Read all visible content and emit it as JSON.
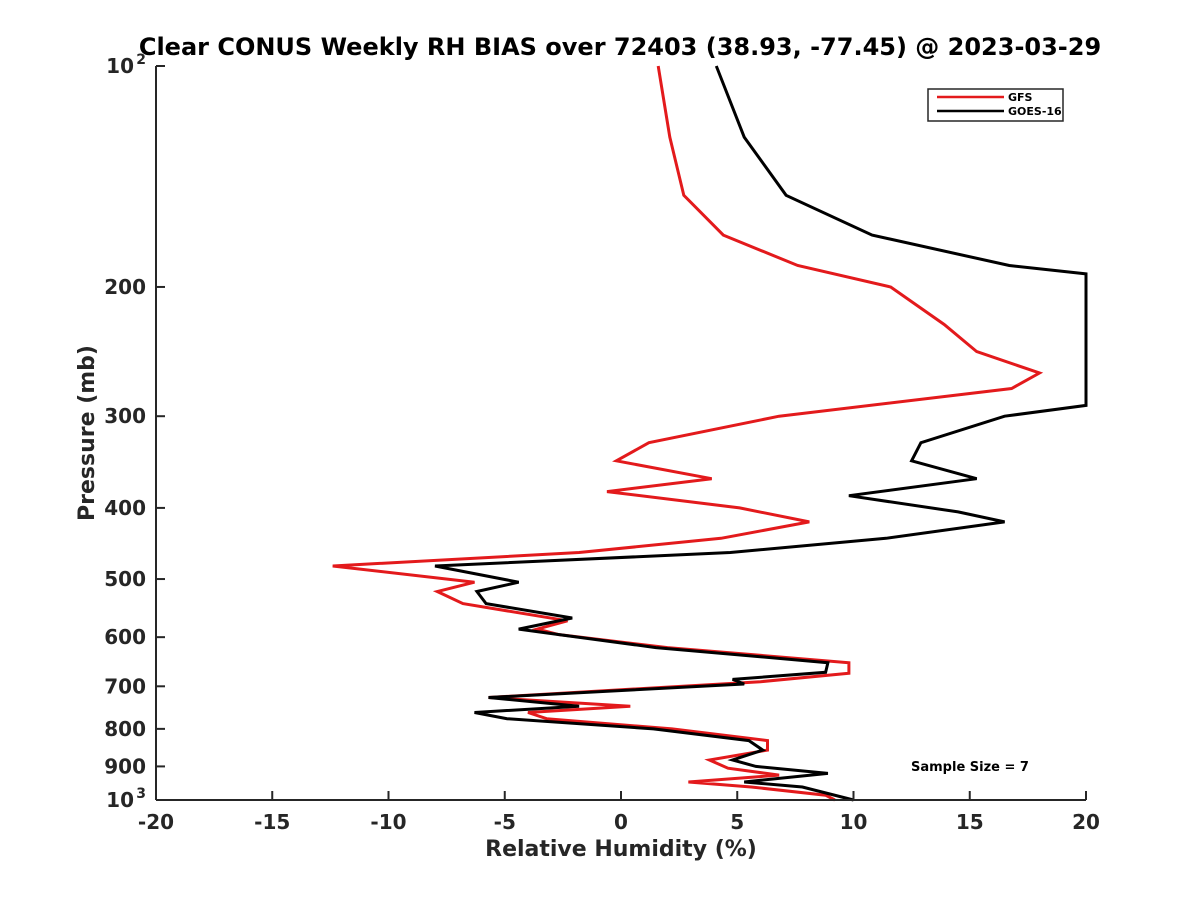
{
  "chart_data": {
    "type": "line",
    "title": "Clear CONUS Weekly RH BIAS over 72403 (38.93, -77.45) @ 2023-03-29",
    "xlabel": "Relative Humidity (%)",
    "ylabel": "Pressure (mb)",
    "xlim": [
      -20,
      20
    ],
    "ylim": [
      100,
      1000
    ],
    "y_scale": "log",
    "y_reversed": true,
    "grid": false,
    "legend_position": "top-right",
    "x_ticks": [
      -20,
      -15,
      -10,
      -5,
      0,
      5,
      10,
      15,
      20
    ],
    "y_ticks": [
      {
        "value": 100,
        "label": "10",
        "sup": "2"
      },
      {
        "value": 200,
        "label": "200",
        "sup": ""
      },
      {
        "value": 300,
        "label": "300",
        "sup": ""
      },
      {
        "value": 400,
        "label": "400",
        "sup": ""
      },
      {
        "value": 500,
        "label": "500",
        "sup": ""
      },
      {
        "value": 600,
        "label": "600",
        "sup": ""
      },
      {
        "value": 700,
        "label": "700",
        "sup": ""
      },
      {
        "value": 800,
        "label": "800",
        "sup": ""
      },
      {
        "value": 900,
        "label": "900",
        "sup": ""
      },
      {
        "value": 1000,
        "label": "10",
        "sup": "3"
      }
    ],
    "series": [
      {
        "name": "GFS",
        "color": "#e31a1c",
        "points": [
          [
            1.6,
            100
          ],
          [
            2.1,
            125
          ],
          [
            2.7,
            150
          ],
          [
            4.4,
            170
          ],
          [
            7.6,
            187
          ],
          [
            11.6,
            200
          ],
          [
            13.9,
            225
          ],
          [
            15.3,
            245
          ],
          [
            18.0,
            262
          ],
          [
            16.8,
            275
          ],
          [
            6.8,
            300
          ],
          [
            1.2,
            326
          ],
          [
            -0.2,
            345
          ],
          [
            3.9,
            365
          ],
          [
            -0.6,
            380
          ],
          [
            5.1,
            400
          ],
          [
            8.1,
            418
          ],
          [
            4.3,
            440
          ],
          [
            -1.8,
            460
          ],
          [
            -12.4,
            480
          ],
          [
            -6.3,
            505
          ],
          [
            -7.9,
            520
          ],
          [
            -6.8,
            540
          ],
          [
            -2.3,
            570
          ],
          [
            -3.6,
            585
          ],
          [
            -2.7,
            595
          ],
          [
            2.0,
            620
          ],
          [
            9.8,
            650
          ],
          [
            9.8,
            672
          ],
          [
            6.0,
            690
          ],
          [
            -5.7,
            725
          ],
          [
            0.4,
            745
          ],
          [
            -4.0,
            760
          ],
          [
            -3.2,
            775
          ],
          [
            2.2,
            800
          ],
          [
            6.3,
            830
          ],
          [
            6.3,
            855
          ],
          [
            3.8,
            882
          ],
          [
            4.6,
            905
          ],
          [
            6.8,
            925
          ],
          [
            2.9,
            945
          ],
          [
            5.6,
            960
          ],
          [
            8.8,
            985
          ],
          [
            9.2,
            1000
          ]
        ]
      },
      {
        "name": "GOES-16",
        "color": "#000000",
        "points": [
          [
            4.1,
            100
          ],
          [
            5.3,
            125
          ],
          [
            7.1,
            150
          ],
          [
            10.8,
            170
          ],
          [
            16.7,
            187
          ],
          [
            20.0,
            192
          ],
          [
            20.0,
            290
          ],
          [
            16.5,
            300
          ],
          [
            12.9,
            326
          ],
          [
            12.5,
            345
          ],
          [
            15.3,
            365
          ],
          [
            9.8,
            385
          ],
          [
            14.5,
            405
          ],
          [
            16.5,
            418
          ],
          [
            11.4,
            440
          ],
          [
            4.7,
            460
          ],
          [
            -8.0,
            480
          ],
          [
            -4.4,
            505
          ],
          [
            -6.2,
            520
          ],
          [
            -5.8,
            540
          ],
          [
            -2.1,
            565
          ],
          [
            -4.4,
            585
          ],
          [
            -2.7,
            595
          ],
          [
            1.5,
            620
          ],
          [
            8.9,
            650
          ],
          [
            8.8,
            670
          ],
          [
            4.8,
            685
          ],
          [
            5.3,
            695
          ],
          [
            -5.7,
            725
          ],
          [
            -1.8,
            745
          ],
          [
            -6.3,
            760
          ],
          [
            -4.9,
            775
          ],
          [
            1.4,
            800
          ],
          [
            5.5,
            830
          ],
          [
            6.1,
            855
          ],
          [
            4.8,
            882
          ],
          [
            5.8,
            900
          ],
          [
            8.9,
            920
          ],
          [
            5.3,
            945
          ],
          [
            7.8,
            960
          ],
          [
            10.0,
            1000
          ]
        ]
      }
    ],
    "annotation": "Sample Size = 7"
  }
}
